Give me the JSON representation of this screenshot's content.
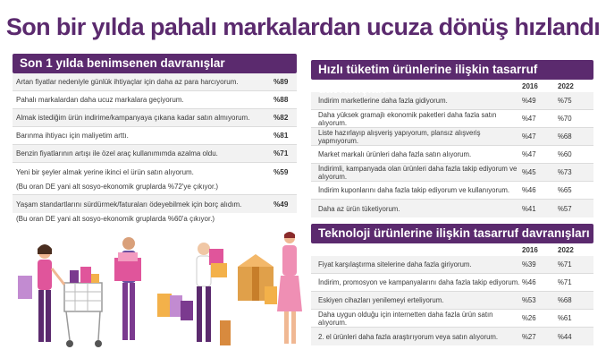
{
  "title": "Son bir yılda pahalı markalardan ucuza dönüş hızlandı",
  "left": {
    "heading": "Son 1 yılda benimsenen davranışlar",
    "rows": [
      {
        "text": "Artan fiyatlar nedeniyle günlük ihtiyaçlar için daha az para harcıyorum.",
        "pct": "%89"
      },
      {
        "text": "Pahalı markalardan daha ucuz markalara geçiyorum.",
        "pct": "%88"
      },
      {
        "text": "Almak istediğim ürün indirime/kampanyaya çıkana kadar satın almıyorum.",
        "pct": "%82"
      },
      {
        "text": "Barınma ihtiyacı için maliyetim arttı.",
        "pct": "%81"
      },
      {
        "text": "Benzin fiyatlarının artışı ile özel araç kullanımımda azalma oldu.",
        "pct": "%71"
      },
      {
        "text": "Yeni bir şeyler almak yerine ikinci el ürün satın alıyorum.",
        "pct": "%59"
      },
      {
        "text": "Yaşam standartlarını sürdürmek/faturaları ödeyebilmek için borç alıdım.",
        "pct": "%49"
      }
    ],
    "note1": "(Bu oran DE yani alt sosyo-ekonomik gruplarda %72'ye çıkıyor.)",
    "note2": "(Bu oran DE yani alt sosyo-ekonomik gruplarda %60'a çıkıyor.)"
  },
  "fmcg": {
    "heading": "Hızlı tüketim ürünlerine ilişkin tasarruf davranışları",
    "years": [
      "2016",
      "2022"
    ],
    "rows": [
      {
        "text": "İndirim marketlerine daha fazla gidiyorum.",
        "v2016": "%49",
        "v2022": "%75"
      },
      {
        "text": "Daha yüksek gramajlı ekonomik paketleri daha fazla satın alıyorum.",
        "v2016": "%47",
        "v2022": "%70"
      },
      {
        "text": "Liste hazırlayıp alışveriş yapıyorum, plansız alışveriş yapmıyorum.",
        "v2016": "%47",
        "v2022": "%68"
      },
      {
        "text": "Market markalı ürünleri daha fazla satın alıyorum.",
        "v2016": "%47",
        "v2022": "%60"
      },
      {
        "text": "İndirimli, kampanyada olan ürünleri daha fazla takip ediyorum ve alıyorum.",
        "v2016": "%45",
        "v2022": "%73"
      },
      {
        "text": "İndirim kuponlarını daha fazla takip ediyorum ve kullanıyorum.",
        "v2016": "%46",
        "v2022": "%65"
      },
      {
        "text": "Daha az ürün tüketiyorum.",
        "v2016": "%41",
        "v2022": "%57"
      }
    ]
  },
  "tech": {
    "heading": "Teknoloji ürünlerine ilişkin tasarruf davranışları",
    "years": [
      "2016",
      "2022"
    ],
    "rows": [
      {
        "text": "Fiyat karşılaştırma sitelerine daha fazla giriyorum.",
        "v2016": "%39",
        "v2022": "%71"
      },
      {
        "text": "İndirim, promosyon ve kampanyalarını daha fazla takip ediyorum.",
        "v2016": "%46",
        "v2022": "%71"
      },
      {
        "text": "Eskiyen cihazları yenilemeyi erteliyorum.",
        "v2016": "%53",
        "v2022": "%68"
      },
      {
        "text": "Daha uygun olduğu için internetten daha fazla ürün satın alıyorum.",
        "v2016": "%26",
        "v2022": "%61"
      },
      {
        "text": "2. el ürünleri daha fazla araştırıyorum veya satın alıyorum.",
        "v2016": "%27",
        "v2022": "%44"
      }
    ]
  },
  "colors": {
    "accent": "#5b2a6e",
    "shade": "#f2f2f2"
  }
}
